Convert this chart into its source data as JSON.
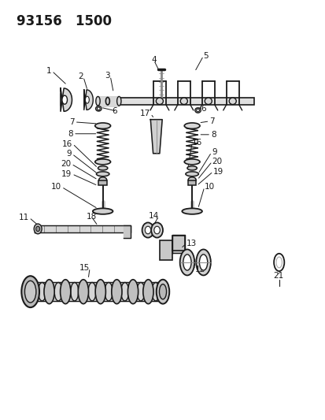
{
  "title": "93156   1500",
  "bg": "#ffffff",
  "lc": "#1a1a1a",
  "fig_w": 4.14,
  "fig_h": 5.33,
  "dpi": 100
}
